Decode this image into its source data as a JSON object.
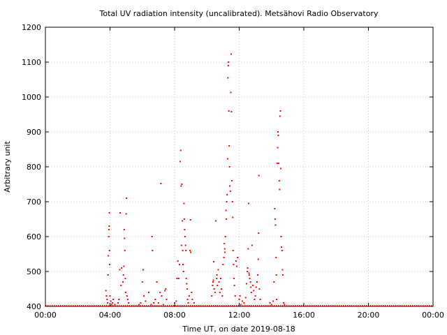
{
  "chart_data": {
    "type": "scatter",
    "title": "Total UV radiation intensity (uncalibrated). Metsähovi Radio Observatory",
    "xlabel": "Time UT, on date 2019-08-18",
    "ylabel": "Arbitrary unit",
    "xlim": [
      0,
      24
    ],
    "ylim": [
      400,
      1200
    ],
    "x_unit": "hours UT",
    "x_ticks": [
      "00:00",
      "04:00",
      "08:00",
      "12:00",
      "16:00",
      "20:00",
      "00:00"
    ],
    "y_ticks": [
      "400",
      "500",
      "600",
      "700",
      "800",
      "900",
      "1000",
      "1100",
      "1200"
    ],
    "grid": true,
    "marker_color": "#ff0000",
    "series": [
      {
        "points": [
          [
            3.75,
            445
          ],
          [
            3.78,
            430
          ],
          [
            3.82,
            420
          ],
          [
            3.85,
            410
          ],
          [
            3.88,
            490
          ],
          [
            3.9,
            545
          ],
          [
            3.92,
            600
          ],
          [
            3.93,
            620
          ],
          [
            3.95,
            630
          ],
          [
            3.96,
            668
          ],
          [
            3.97,
            560
          ],
          [
            3.98,
            520
          ],
          [
            4.0,
            430
          ],
          [
            4.05,
            415
          ],
          [
            4.1,
            405
          ],
          [
            4.15,
            410
          ],
          [
            4.2,
            420
          ],
          [
            4.3,
            405
          ],
          [
            4.5,
            410
          ],
          [
            4.55,
            420
          ],
          [
            4.6,
            505
          ],
          [
            4.63,
            668
          ],
          [
            4.68,
            460
          ],
          [
            4.72,
            510
          ],
          [
            4.8,
            470
          ],
          [
            4.83,
            490
          ],
          [
            4.86,
            515
          ],
          [
            4.88,
            620
          ],
          [
            4.9,
            595
          ],
          [
            4.92,
            560
          ],
          [
            4.95,
            480
          ],
          [
            4.97,
            440
          ],
          [
            5.0,
            665
          ],
          [
            5.02,
            710
          ],
          [
            5.05,
            430
          ],
          [
            5.1,
            420
          ],
          [
            5.15,
            410
          ],
          [
            5.8,
            405
          ],
          [
            5.9,
            410
          ],
          [
            6.0,
            470
          ],
          [
            6.05,
            505
          ],
          [
            6.1,
            430
          ],
          [
            6.2,
            415
          ],
          [
            6.4,
            440
          ],
          [
            6.55,
            405
          ],
          [
            6.6,
            600
          ],
          [
            6.63,
            560
          ],
          [
            6.7,
            410
          ],
          [
            6.8,
            420
          ],
          [
            6.9,
            470
          ],
          [
            7.0,
            410
          ],
          [
            7.1,
            440
          ],
          [
            7.15,
            752
          ],
          [
            7.2,
            430
          ],
          [
            7.3,
            405
          ],
          [
            7.4,
            445
          ],
          [
            7.45,
            450
          ],
          [
            7.5,
            420
          ],
          [
            8.0,
            410
          ],
          [
            8.1,
            415
          ],
          [
            8.15,
            480
          ],
          [
            8.2,
            530
          ],
          [
            8.25,
            480
          ],
          [
            8.3,
            520
          ],
          [
            8.35,
            815
          ],
          [
            8.38,
            847
          ],
          [
            8.4,
            745
          ],
          [
            8.42,
            575
          ],
          [
            8.45,
            750
          ],
          [
            8.48,
            645
          ],
          [
            8.5,
            560
          ],
          [
            8.52,
            520
          ],
          [
            8.55,
            500
          ],
          [
            8.58,
            695
          ],
          [
            8.6,
            650
          ],
          [
            8.62,
            620
          ],
          [
            8.65,
            600
          ],
          [
            8.68,
            575
          ],
          [
            8.7,
            560
          ],
          [
            8.72,
            480
          ],
          [
            8.75,
            465
          ],
          [
            8.78,
            450
          ],
          [
            8.8,
            420
          ],
          [
            8.85,
            410
          ],
          [
            8.9,
            430
          ],
          [
            8.95,
            560
          ],
          [
            8.98,
            648
          ],
          [
            9.0,
            555
          ],
          [
            9.05,
            440
          ],
          [
            9.1,
            420
          ],
          [
            9.2,
            410
          ],
          [
            10.3,
            430
          ],
          [
            10.35,
            460
          ],
          [
            10.38,
            470
          ],
          [
            10.4,
            475
          ],
          [
            10.42,
            528
          ],
          [
            10.45,
            450
          ],
          [
            10.5,
            440
          ],
          [
            10.55,
            645
          ],
          [
            10.6,
            480
          ],
          [
            10.62,
            490
          ],
          [
            10.65,
            460
          ],
          [
            10.7,
            505
          ],
          [
            10.75,
            470
          ],
          [
            10.8,
            440
          ],
          [
            10.85,
            480
          ],
          [
            10.9,
            450
          ],
          [
            10.95,
            430
          ],
          [
            11.0,
            520
          ],
          [
            11.05,
            540
          ],
          [
            11.08,
            580
          ],
          [
            11.1,
            565
          ],
          [
            11.12,
            555
          ],
          [
            11.15,
            600
          ],
          [
            11.18,
            675
          ],
          [
            11.2,
            650
          ],
          [
            11.22,
            700
          ],
          [
            11.25,
            720
          ],
          [
            11.28,
            823
          ],
          [
            11.3,
            1055
          ],
          [
            11.32,
            1090
          ],
          [
            11.34,
            1100
          ],
          [
            11.36,
            960
          ],
          [
            11.38,
            860
          ],
          [
            11.4,
            800
          ],
          [
            11.42,
            745
          ],
          [
            11.45,
            730
          ],
          [
            11.48,
            1013
          ],
          [
            11.5,
            1123
          ],
          [
            11.52,
            958
          ],
          [
            11.55,
            760
          ],
          [
            11.58,
            700
          ],
          [
            11.6,
            655
          ],
          [
            11.62,
            560
          ],
          [
            11.65,
            520
          ],
          [
            11.68,
            480
          ],
          [
            11.7,
            460
          ],
          [
            11.75,
            430
          ],
          [
            11.8,
            530
          ],
          [
            11.85,
            515
          ],
          [
            11.9,
            540
          ],
          [
            12.0,
            420
          ],
          [
            12.05,
            430
          ],
          [
            12.1,
            405
          ],
          [
            12.2,
            415
          ],
          [
            12.3,
            410
          ],
          [
            12.4,
            425
          ],
          [
            12.45,
            465
          ],
          [
            12.5,
            500
          ],
          [
            12.52,
            510
          ],
          [
            12.55,
            565
          ],
          [
            12.58,
            695
          ],
          [
            12.6,
            495
          ],
          [
            12.62,
            490
          ],
          [
            12.65,
            480
          ],
          [
            12.7,
            470
          ],
          [
            12.72,
            455
          ],
          [
            12.75,
            440
          ],
          [
            12.8,
            575
          ],
          [
            12.85,
            460
          ],
          [
            12.9,
            445
          ],
          [
            12.95,
            420
          ],
          [
            13.0,
            430
          ],
          [
            13.05,
            455
          ],
          [
            13.1,
            470
          ],
          [
            13.15,
            490
          ],
          [
            13.18,
            535
          ],
          [
            13.2,
            610
          ],
          [
            13.22,
            775
          ],
          [
            13.25,
            450
          ],
          [
            13.3,
            420
          ],
          [
            13.9,
            410
          ],
          [
            14.0,
            405
          ],
          [
            14.1,
            415
          ],
          [
            14.15,
            470
          ],
          [
            14.2,
            680
          ],
          [
            14.22,
            650
          ],
          [
            14.25,
            633
          ],
          [
            14.28,
            540
          ],
          [
            14.3,
            490
          ],
          [
            14.32,
            420
          ],
          [
            14.35,
            810
          ],
          [
            14.38,
            855
          ],
          [
            14.4,
            900
          ],
          [
            14.42,
            890
          ],
          [
            14.45,
            810
          ],
          [
            14.48,
            760
          ],
          [
            14.5,
            735
          ],
          [
            14.52,
            945
          ],
          [
            14.55,
            960
          ],
          [
            14.58,
            795
          ],
          [
            14.6,
            600
          ],
          [
            14.62,
            570
          ],
          [
            14.65,
            560
          ],
          [
            14.68,
            505
          ],
          [
            14.7,
            490
          ],
          [
            14.75,
            410
          ],
          [
            14.8,
            405
          ]
        ]
      }
    ]
  }
}
